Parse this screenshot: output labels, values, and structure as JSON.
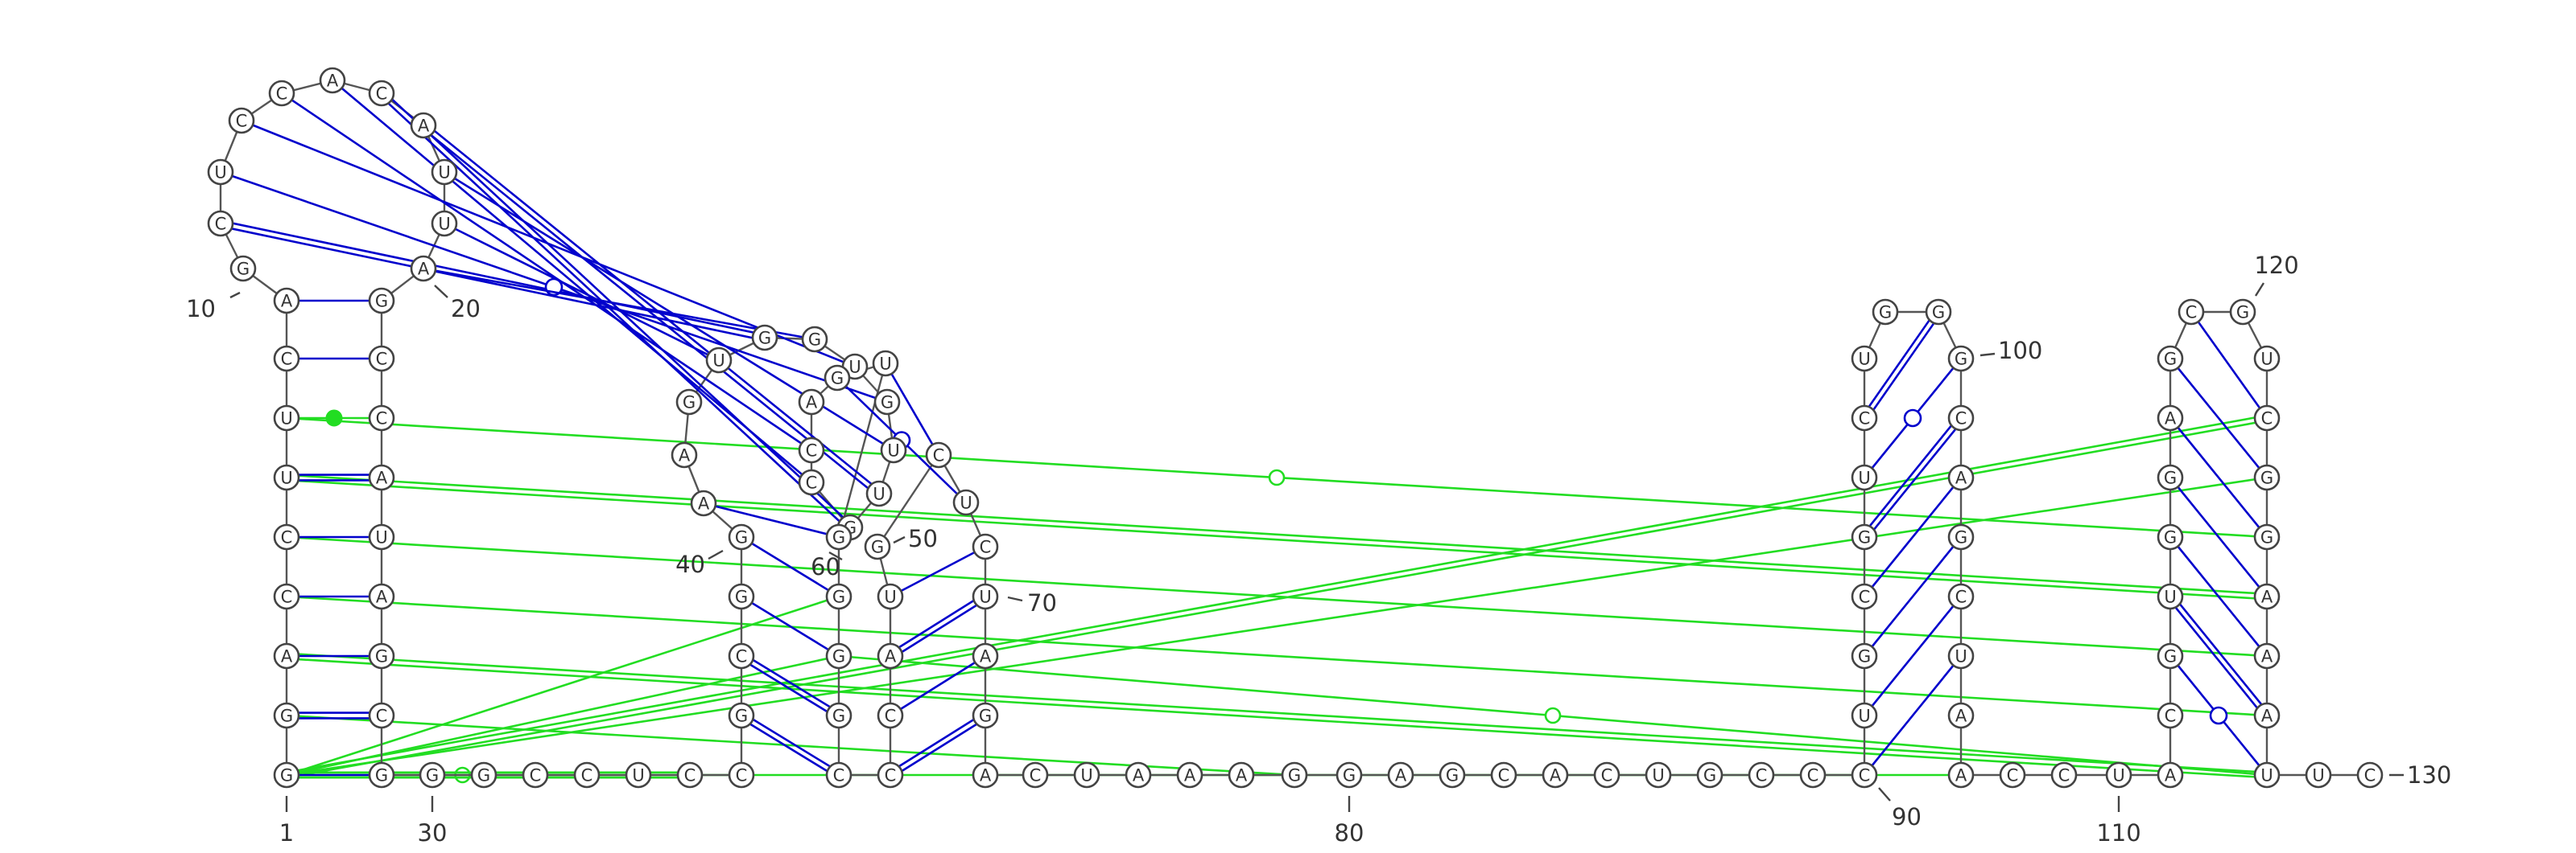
{
  "colors": {
    "secondary_pair": "#0000cc",
    "tertiary_pair": "#22dd22",
    "backbone": "#555555",
    "nucleotide_fill": "#ffffff",
    "nucleotide_stroke": "#444444"
  },
  "sequence": "GGACCUUCAGCUCCACAUUAGCCAUAGCGGGCCUCCGCGGAAGUGGUGUUGCCAGUGGGGCCCAUGCUCUAGACUAAAGGAGCACUGCCCUGCGUCUGGGCAGCUAACCUACGUGGAGCGUCGGAAAUUC",
  "position_labels": [
    {
      "text": "1"
    },
    {
      "text": "10"
    },
    {
      "text": "20"
    },
    {
      "text": "30"
    },
    {
      "text": "40"
    },
    {
      "text": "50"
    },
    {
      "text": "60"
    },
    {
      "text": "70"
    },
    {
      "text": "80"
    },
    {
      "text": "90"
    },
    {
      "text": "100"
    },
    {
      "text": "110"
    },
    {
      "text": "120"
    },
    {
      "text": "130"
    }
  ],
  "secondary_pairs": [
    [
      1,
      29
    ],
    [
      2,
      28
    ],
    [
      3,
      27
    ],
    [
      4,
      26
    ],
    [
      5,
      25
    ],
    [
      6,
      24
    ],
    [
      7,
      23
    ],
    [
      8,
      22
    ],
    [
      9,
      21
    ],
    [
      37,
      61
    ],
    [
      38,
      60
    ],
    [
      39,
      59
    ],
    [
      40,
      58
    ],
    [
      41,
      57
    ],
    [
      62,
      72
    ],
    [
      63,
      71
    ],
    [
      64,
      70
    ],
    [
      65,
      69
    ],
    [
      90,
      105
    ],
    [
      91,
      104
    ],
    [
      92,
      103
    ],
    [
      93,
      102
    ],
    [
      94,
      101
    ],
    [
      95,
      100
    ],
    [
      96,
      99
    ],
    [
      113,
      128
    ],
    [
      114,
      127
    ],
    [
      115,
      126
    ],
    [
      116,
      125
    ],
    [
      117,
      124
    ],
    [
      118,
      123
    ],
    [
      119,
      122
    ],
    [
      11,
      45
    ],
    [
      12,
      48
    ],
    [
      13,
      47
    ],
    [
      14,
      53
    ],
    [
      15,
      52
    ],
    [
      16,
      51
    ],
    [
      17,
      50
    ],
    [
      18,
      49
    ],
    [
      19,
      44
    ],
    [
      20,
      46
    ],
    [
      56,
      67
    ],
    [
      55,
      68
    ]
  ],
  "tertiary_pairs": [
    [
      1,
      34
    ],
    [
      2,
      79
    ],
    [
      3,
      128
    ],
    [
      4,
      127
    ],
    [
      5,
      126
    ],
    [
      6,
      125
    ],
    [
      7,
      124
    ],
    [
      1,
      33
    ],
    [
      1,
      35
    ],
    [
      1,
      58
    ],
    [
      1,
      107
    ],
    [
      1,
      59
    ],
    [
      1,
      122
    ],
    [
      1,
      123
    ],
    [
      59,
      128
    ]
  ]
}
